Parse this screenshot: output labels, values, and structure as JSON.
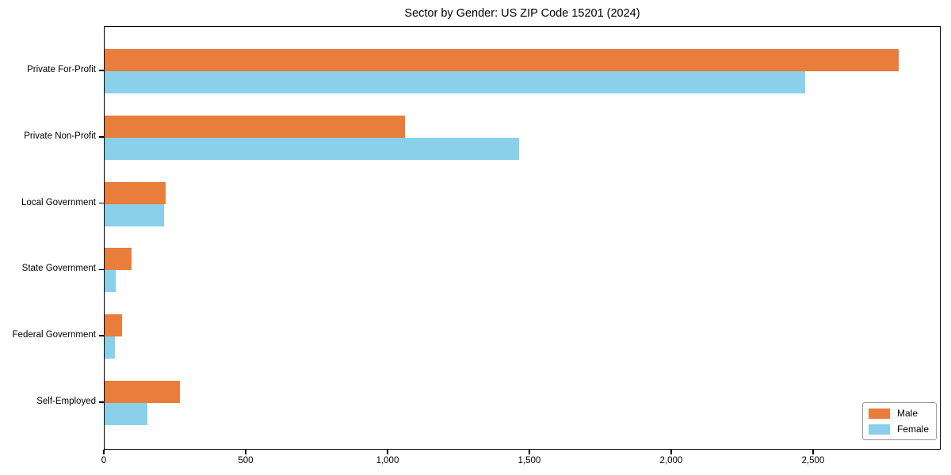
{
  "chart_data": {
    "type": "bar",
    "orientation": "horizontal",
    "title": "Sector by Gender: US ZIP Code 15201 (2024)",
    "categories": [
      "Private For-Profit",
      "Private Non-Profit",
      "Local Government",
      "State Government",
      "Federal Government",
      "Self-Employed"
    ],
    "series": [
      {
        "name": "Male",
        "color": "#e87d3c",
        "values": [
          2800,
          1060,
          215,
          95,
          60,
          265
        ]
      },
      {
        "name": "Female",
        "color": "#8ad0eb",
        "values": [
          2470,
          1460,
          210,
          40,
          35,
          150
        ]
      }
    ],
    "xlabel": "",
    "ylabel": "",
    "x_ticks": [
      0,
      500,
      1000,
      1500,
      2000,
      2500
    ],
    "x_tick_labels": [
      "0",
      "500",
      "1,000",
      "1,500",
      "2,000",
      "2,500"
    ],
    "xlim": [
      0,
      2950
    ],
    "grid": false,
    "legend_position": "lower right",
    "colors": {
      "axis": "#000000",
      "background": "#ffffff",
      "text": "#000000"
    }
  }
}
